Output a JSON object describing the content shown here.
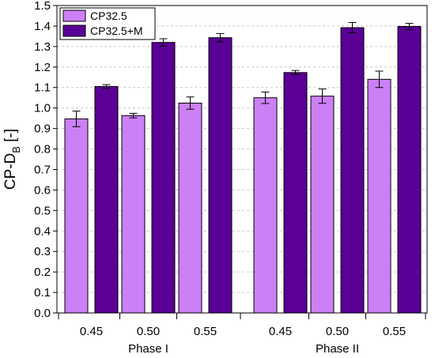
{
  "chart_data": {
    "type": "bar",
    "title": "",
    "xlabel": "",
    "ylabel": {
      "main": "CP-D",
      "sub": "B",
      "unit": " [-]"
    },
    "ylim": [
      0.0,
      1.5
    ],
    "yticks": [
      "0.0",
      "0.1",
      "0.2",
      "0.3",
      "0.4",
      "0.5",
      "0.6",
      "0.7",
      "0.8",
      "0.9",
      "1.0",
      "1.1",
      "1.2",
      "1.3",
      "1.4",
      "1.5"
    ],
    "grid": true,
    "legend_position": "top-left",
    "groups": [
      {
        "label": "Phase I",
        "categories": [
          "0.45",
          "0.50",
          "0.55"
        ]
      },
      {
        "label": "Phase II",
        "categories": [
          "0.45",
          "0.50",
          "0.55"
        ]
      }
    ],
    "series": [
      {
        "name": "CP32.5",
        "color": "#cc80f5",
        "values": [
          0.947,
          0.963,
          1.024,
          1.05,
          1.058,
          1.14
        ],
        "errors": [
          0.038,
          0.011,
          0.03,
          0.028,
          0.035,
          0.04
        ]
      },
      {
        "name": "CP32.5+M",
        "color": "#5a0096",
        "values": [
          1.105,
          1.32,
          1.343,
          1.173,
          1.392,
          1.398
        ],
        "errors": [
          0.009,
          0.018,
          0.02,
          0.01,
          0.025,
          0.015
        ]
      }
    ]
  }
}
